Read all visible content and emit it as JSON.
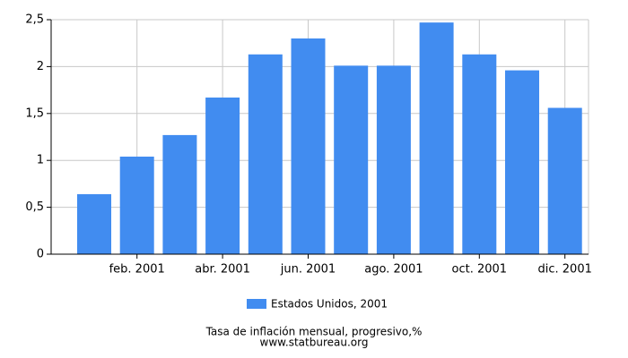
{
  "chart_data": {
    "type": "bar",
    "categories": [
      null,
      "feb. 2001",
      null,
      "abr. 2001",
      null,
      "jun. 2001",
      null,
      "ago. 2001",
      null,
      "oct. 2001",
      null,
      "dic. 2001"
    ],
    "series": [
      {
        "name": "Estados Unidos, 2001",
        "color": "#418cf0",
        "values": [
          0.64,
          1.04,
          1.27,
          1.67,
          2.13,
          2.3,
          2.01,
          2.01,
          2.47,
          2.13,
          1.96,
          1.56
        ]
      }
    ],
    "ylim": [
      0,
      2.5
    ],
    "yticks": [
      0,
      {
        "value": 0.5,
        "label": "0,5"
      },
      1,
      {
        "value": 1.5,
        "label": "1,5"
      },
      2,
      {
        "value": 2.5,
        "label": "2,5"
      }
    ],
    "grid": true,
    "caption": "Tasa de inflación mensual, progresivo,%",
    "source": "www.statbureau.org"
  }
}
